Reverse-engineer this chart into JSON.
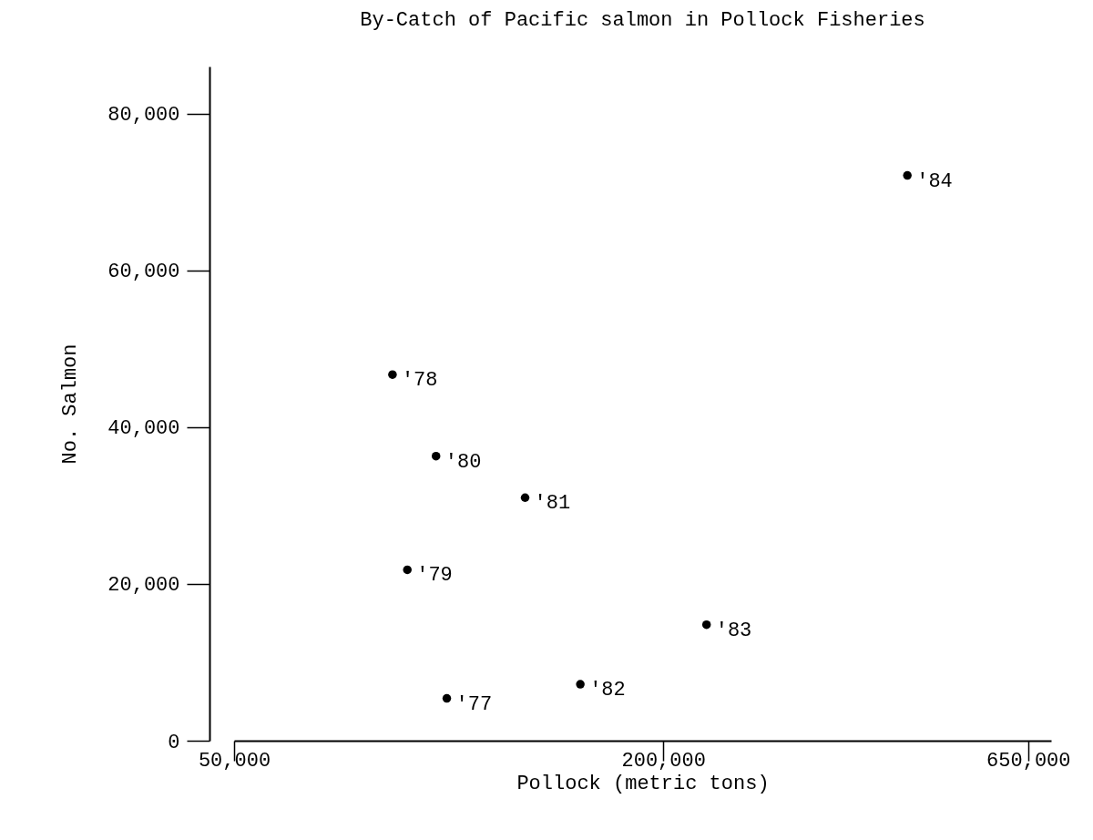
{
  "chart_data": {
    "type": "scatter",
    "title": "By-Catch of Pacific salmon in Pollock Fisheries",
    "xlabel": "Pollock (metric tons)",
    "ylabel": "No. Salmon",
    "log": "x",
    "marker": "circle",
    "grid": false,
    "legend": false,
    "xlim": [
      50000,
      700000
    ],
    "ylim": [
      0,
      86000
    ],
    "xticks": [
      {
        "value": 50000,
        "label": "50,000"
      },
      {
        "value": 200000,
        "label": "200,000"
      },
      {
        "value": 650000,
        "label": "650,000"
      }
    ],
    "yticks": [
      0,
      {
        "value": 20000,
        "label": "20,000"
      },
      {
        "value": 40000,
        "label": "40,000"
      },
      {
        "value": 60000,
        "label": "60,000"
      },
      {
        "value": 80000,
        "label": "80,000"
      }
    ],
    "series": [
      {
        "color": "#000000",
        "x": [
          99400,
          83400,
          87500,
          96000,
          128000,
          153000,
          230000,
          440000
        ],
        "values": [
          5400,
          46700,
          21800,
          36300,
          31000,
          7200,
          14800,
          72100
        ]
      }
    ],
    "annotations": [
      {
        "text": "'77",
        "x": 99400,
        "y": 5400
      },
      {
        "text": "'78",
        "x": 83400,
        "y": 46700
      },
      {
        "text": "'79",
        "x": 87500,
        "y": 21800
      },
      {
        "text": "'80",
        "x": 96000,
        "y": 36300
      },
      {
        "text": "'81",
        "x": 128000,
        "y": 31000
      },
      {
        "text": "'82",
        "x": 153000,
        "y": 7200
      },
      {
        "text": "'83",
        "x": 230000,
        "y": 14800
      },
      {
        "text": "'84",
        "x": 440000,
        "y": 72100
      }
    ]
  }
}
